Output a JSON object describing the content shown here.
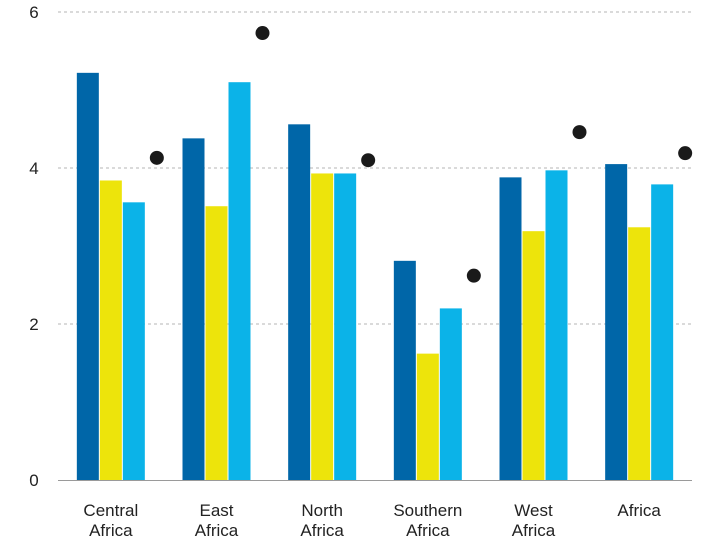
{
  "chart_data": {
    "type": "bar",
    "categories": [
      [
        "Central",
        "Africa"
      ],
      [
        "East",
        "Africa"
      ],
      [
        "North",
        "Africa"
      ],
      [
        "Southern",
        "Africa"
      ],
      [
        "West",
        "Africa"
      ],
      [
        "Africa"
      ]
    ],
    "series": [
      {
        "color": "#0066a8",
        "values": [
          5.22,
          4.38,
          4.56,
          2.81,
          3.88,
          4.05
        ]
      },
      {
        "color": "#ede40b",
        "values": [
          3.84,
          3.51,
          3.93,
          1.62,
          3.19,
          3.24
        ]
      },
      {
        "color": "#0bb3e8",
        "values": [
          3.56,
          5.1,
          3.93,
          2.2,
          3.97,
          3.79
        ]
      }
    ],
    "markers": {
      "color": "#1a1a1a",
      "values": [
        4.13,
        5.73,
        4.1,
        2.62,
        4.46,
        4.19
      ]
    },
    "y_ticks": [
      "0",
      "2",
      "4",
      "6"
    ],
    "ylim": [
      0,
      6
    ],
    "grid": "dashed horizontal",
    "title": "",
    "xlabel": "",
    "ylabel": ""
  }
}
